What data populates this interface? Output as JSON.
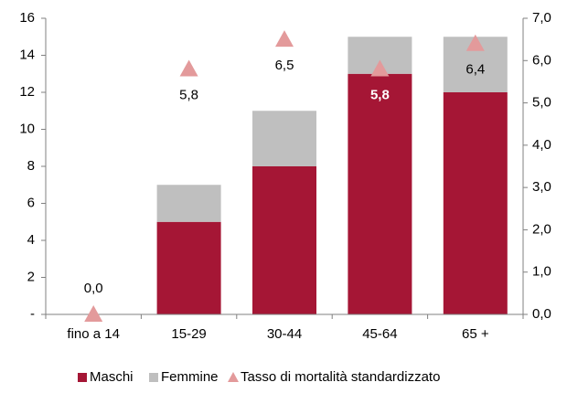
{
  "chart_data": {
    "type": "bar",
    "categories": [
      "fino a 14",
      "15-29",
      "30-44",
      "45-64",
      "65 +"
    ],
    "series": [
      {
        "name": "Maschi",
        "color": "#a51635",
        "values": [
          0,
          5,
          8,
          13,
          12
        ]
      },
      {
        "name": "Femmine",
        "color": "#bfbfbf",
        "values": [
          0,
          2,
          3,
          2,
          3
        ]
      },
      {
        "name": "Tasso di mortalità standardizzato",
        "color": "#e39a9b",
        "axis": "y2",
        "marker": "triangle",
        "values": [
          0.0,
          5.8,
          6.5,
          5.8,
          6.4
        ],
        "value_labels": [
          "0,0",
          "5,8",
          "6,5",
          "5,8",
          "6,4"
        ]
      }
    ],
    "stacked": true,
    "ylim": [
      0,
      16
    ],
    "yticks": [
      {
        "value": 0,
        "label": "-"
      },
      2,
      4,
      6,
      8,
      10,
      12,
      14,
      16
    ],
    "y2lim": [
      0,
      7
    ],
    "y2ticks": [
      {
        "value": 0,
        "label": "0,0"
      },
      {
        "value": 1,
        "label": "1,0"
      },
      {
        "value": 2,
        "label": "2,0"
      },
      {
        "value": 3,
        "label": "3,0"
      },
      {
        "value": 4,
        "label": "4,0"
      },
      {
        "value": 5,
        "label": "5,0"
      },
      {
        "value": 6,
        "label": "6,0"
      },
      {
        "value": 7,
        "label": "7,0"
      }
    ],
    "legend": "bottom"
  }
}
